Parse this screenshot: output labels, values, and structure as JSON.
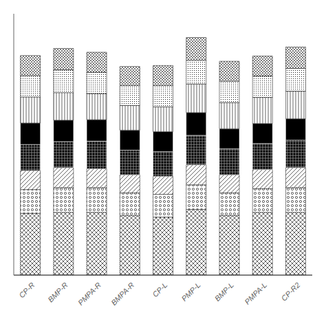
{
  "chart_data": {
    "type": "bar",
    "stacked": true,
    "categories": [
      "CP-R",
      "BMP-R",
      "PMPA-R",
      "BMPA-R",
      "CP-L",
      "PMP-L",
      "BMP-L",
      "PMPA-L",
      "CP-R2"
    ],
    "series": [
      {
        "color": "white",
        "values": [
          1.3,
          1.32,
          1.32,
          1.25,
          1.22,
          1.38,
          1.25,
          1.32,
          1.32
        ]
      },
      {
        "color": "white",
        "values": [
          0.5,
          0.52,
          0.52,
          0.48,
          0.48,
          0.52,
          0.48,
          0.5,
          0.52
        ]
      },
      {
        "color": "white",
        "values": [
          0.4,
          0.42,
          0.4,
          0.38,
          0.38,
          0.42,
          0.38,
          0.4,
          0.42
        ]
      },
      {
        "color": "black",
        "values": [
          0.55,
          0.55,
          0.58,
          0.52,
          0.52,
          0.62,
          0.55,
          0.55,
          0.58
        ]
      },
      {
        "color": "black",
        "values": [
          0.45,
          0.45,
          0.45,
          0.42,
          0.42,
          0.48,
          0.42,
          0.42,
          0.45
        ]
      },
      {
        "color": "white",
        "values": [
          0.55,
          0.58,
          0.55,
          0.52,
          0.52,
          0.6,
          0.55,
          0.55,
          0.58
        ]
      },
      {
        "color": "white",
        "values": [
          0.45,
          0.48,
          0.45,
          0.42,
          0.45,
          0.5,
          0.45,
          0.45,
          0.48
        ]
      },
      {
        "color": "white",
        "values": [
          0.42,
          0.45,
          0.42,
          0.4,
          0.42,
          0.48,
          0.42,
          0.42,
          0.45
        ]
      }
    ],
    "ylim": [
      0,
      5.5
    ],
    "grid": false,
    "tick_labels": "x"
  }
}
